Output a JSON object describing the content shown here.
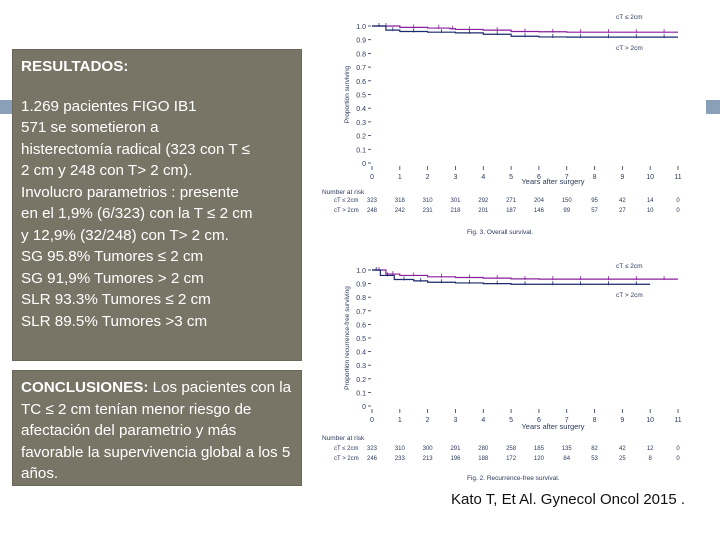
{
  "results": {
    "title": "RESULTADOS:",
    "lines": [
      "1.269 pacientes FIGO IB1",
      "571 se sometieron a",
      "histerectomía radical (323 con T ≤",
      "2 cm y 248 con T> 2 cm).",
      "Involucro parametrios : presente",
      "en el 1,9% (6/323) con la T ≤ 2 cm",
      "y 12,9% (32/248) con T> 2 cm.",
      "SG 95.8%  Tumores ≤ 2 cm",
      "SG 91,9% Tumores > 2 cm",
      "SLR 93.3% Tumores ≤ 2 cm",
      "SLR 89.5% Tumores >3 cm"
    ]
  },
  "conclusions": {
    "label": "CONCLUSIONES:",
    "text": " Los pacientes con la TC ≤ 2 cm tenían menor riesgo de afectación del parametrio y más favorable la supervivencia global a los 5 años."
  },
  "citation": "Kato  T, Et Al.  Gynecol Oncol  2015 .",
  "colors": {
    "panel": "#797566",
    "panel_text": "#ffffff",
    "series_small": "#8a1f9e",
    "series_large": "#1a2a6c",
    "axis_text": "#2b3a5c",
    "accent": "#8aa0b8"
  },
  "chart_data": [
    {
      "type": "line",
      "title": "Fig. 3. Overall survival.",
      "xlabel": "Years after surgery",
      "ylabel": "Proportion surviving",
      "xlim": [
        0,
        11
      ],
      "ylim": [
        0,
        1.0
      ],
      "x_ticks": [
        0,
        1,
        2,
        3,
        4,
        5,
        6,
        7,
        8,
        9,
        10,
        11
      ],
      "y_ticks": [
        0,
        0.1,
        0.2,
        0.3,
        0.4,
        0.5,
        0.6,
        0.7,
        0.8,
        0.9,
        1.0
      ],
      "legend_labels": [
        "cT ≤ 2cm",
        "cT > 2cm"
      ],
      "series": [
        {
          "name": "cT ≤ 2cm",
          "x": [
            0,
            1,
            2,
            2.8,
            3,
            4,
            5,
            6,
            7,
            8,
            9,
            10,
            11
          ],
          "y": [
            1.0,
            0.99,
            0.985,
            0.98,
            0.975,
            0.97,
            0.96,
            0.958,
            0.955,
            0.955,
            0.955,
            0.955,
            0.955
          ]
        },
        {
          "name": "cT > 2cm",
          "x": [
            0,
            0.5,
            1,
            2,
            3,
            4,
            5,
            6,
            7,
            8,
            9,
            10,
            11
          ],
          "y": [
            1.0,
            0.97,
            0.96,
            0.955,
            0.95,
            0.94,
            0.925,
            0.92,
            0.919,
            0.919,
            0.919,
            0.919,
            0.919
          ]
        }
      ],
      "number_at_risk": {
        "label": "Number at risk",
        "rows": [
          {
            "name": "cT ≤ 2cm",
            "values": [
              "323",
              "318",
              "310",
              "301",
              "292",
              "271",
              "204",
              "150",
              "95",
              "42",
              "14",
              "0"
            ]
          },
          {
            "name": "cT > 2cm",
            "values": [
              "248",
              "242",
              "231",
              "218",
              "201",
              "187",
              "146",
              "99",
              "57",
              "27",
              "10",
              "0"
            ]
          }
        ]
      }
    },
    {
      "type": "line",
      "title": "Fig. 2. Recurrence-free survival.",
      "xlabel": "Years after surgery",
      "ylabel": "Proportion recurrence-free surviving",
      "xlim": [
        0,
        11
      ],
      "ylim": [
        0,
        1.0
      ],
      "x_ticks": [
        0,
        1,
        2,
        3,
        4,
        5,
        6,
        7,
        8,
        9,
        10,
        11
      ],
      "y_ticks": [
        0,
        0.1,
        0.2,
        0.3,
        0.4,
        0.5,
        0.6,
        0.7,
        0.8,
        0.9,
        1.0
      ],
      "legend_labels": [
        "cT ≤ 2cm",
        "cT > 2cm"
      ],
      "series": [
        {
          "name": "cT ≤ 2cm",
          "x": [
            0,
            0.5,
            1,
            2,
            3,
            4,
            5,
            6,
            7,
            8,
            9,
            10,
            11
          ],
          "y": [
            1.0,
            0.97,
            0.96,
            0.95,
            0.945,
            0.94,
            0.935,
            0.933,
            0.933,
            0.933,
            0.933,
            0.933,
            0.933
          ]
        },
        {
          "name": "cT > 2cm",
          "x": [
            0,
            0.3,
            0.8,
            1.5,
            2,
            3,
            4,
            5,
            6,
            7,
            8,
            9,
            10
          ],
          "y": [
            1.0,
            0.96,
            0.93,
            0.92,
            0.91,
            0.905,
            0.9,
            0.895,
            0.895,
            0.895,
            0.895,
            0.895,
            0.895
          ]
        }
      ],
      "number_at_risk": {
        "label": "Number at risk",
        "rows": [
          {
            "name": "cT ≤ 2cm",
            "values": [
              "323",
              "310",
              "300",
              "291",
              "280",
              "258",
              "185",
              "135",
              "82",
              "42",
              "12",
              "0"
            ]
          },
          {
            "name": "cT > 2cm",
            "values": [
              "246",
              "233",
              "213",
              "196",
              "188",
              "172",
              "120",
              "84",
              "53",
              "25",
              "8",
              "0"
            ]
          }
        ]
      }
    }
  ]
}
